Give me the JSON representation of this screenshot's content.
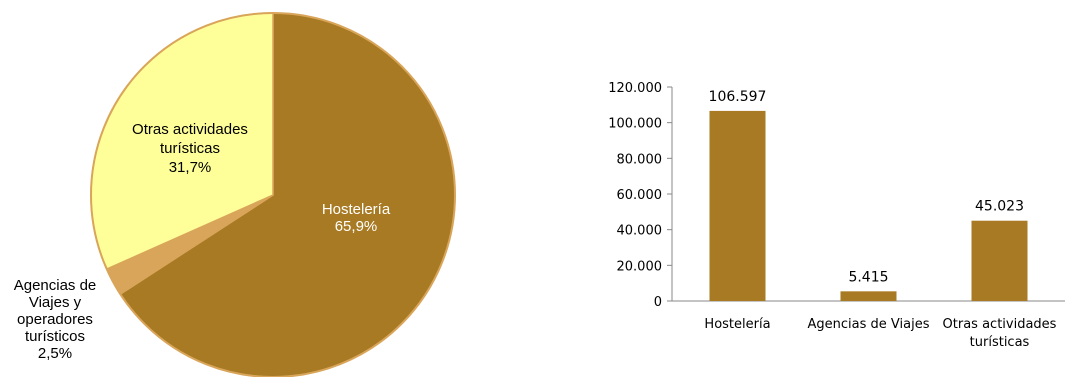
{
  "chart_data": [
    {
      "type": "pie",
      "slices": [
        {
          "label_lines": [
            "Hostelería",
            "65,9%"
          ],
          "value": 65.9,
          "color": "#A87A23"
        },
        {
          "label_lines": [
            "Agencias de",
            "Viajes y",
            "operadores",
            "turísticos",
            "2,5%"
          ],
          "value": 2.5,
          "color": "#D9A55A"
        },
        {
          "label_lines": [
            "Otras actividades",
            "turísticas",
            "31,7%"
          ],
          "value": 31.7,
          "color": "#FFFF99"
        }
      ],
      "border_color": "#D9A55A"
    },
    {
      "type": "bar",
      "categories": [
        {
          "lines": [
            "Hostelería"
          ]
        },
        {
          "lines": [
            "Agencias de Viajes"
          ]
        },
        {
          "lines": [
            "Otras actividades",
            "turísticas"
          ]
        }
      ],
      "values": [
        106597,
        5415,
        45023
      ],
      "value_labels": [
        "106.597",
        "5.415",
        "45.023"
      ],
      "ylim": [
        0,
        120000
      ],
      "yticks": [
        "0",
        "20.000",
        "40.000",
        "60.000",
        "80.000",
        "100.000",
        "120.000"
      ],
      "bar_color": "#A87A23",
      "grid": false
    }
  ]
}
